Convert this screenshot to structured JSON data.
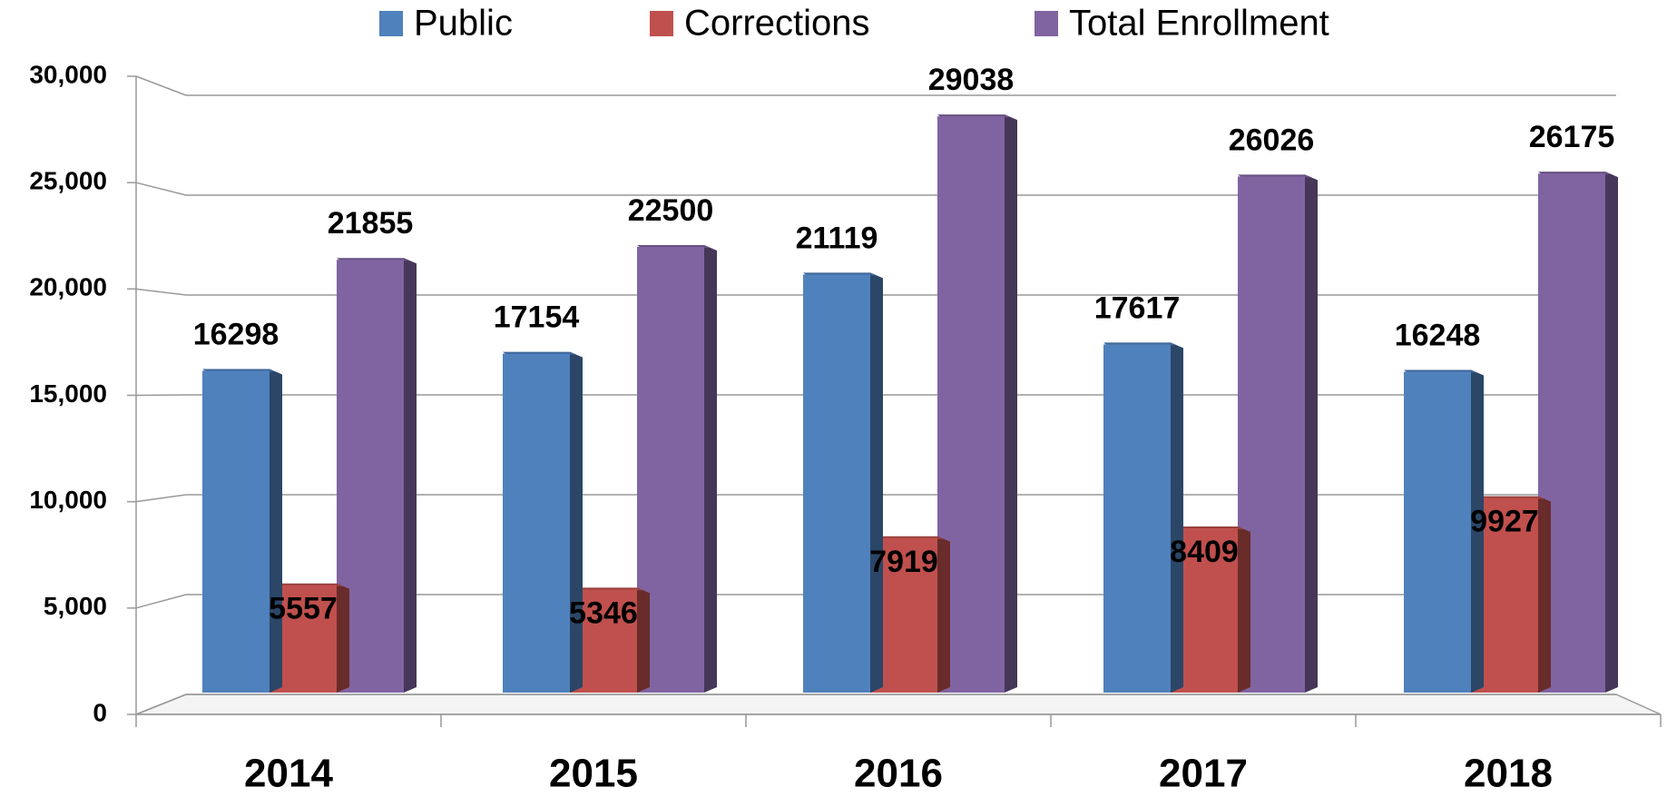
{
  "chart_data": {
    "type": "bar",
    "categories": [
      "2014",
      "2015",
      "2016",
      "2017",
      "2018"
    ],
    "series": [
      {
        "name": "Public",
        "color": "#4f81bd",
        "values": [
          16298,
          17154,
          21119,
          17617,
          16248
        ]
      },
      {
        "name": "Corrections",
        "color": "#c0504d",
        "values": [
          5557,
          5346,
          7919,
          8409,
          9927
        ]
      },
      {
        "name": "Total Enrollment",
        "color": "#8064a2",
        "values": [
          21855,
          22500,
          29038,
          26026,
          26175
        ]
      }
    ],
    "ylim": [
      0,
      30000
    ],
    "yticks": [
      0,
      {
        "value": 5000,
        "label": "5,000"
      },
      {
        "value": 10000,
        "label": "10,000"
      },
      {
        "value": 15000,
        "label": "15,000"
      },
      {
        "value": 20000,
        "label": "20,000"
      },
      {
        "value": 25000,
        "label": "25,000"
      },
      {
        "value": 30000,
        "label": "30,000"
      }
    ],
    "grid": true,
    "legend": "top"
  }
}
